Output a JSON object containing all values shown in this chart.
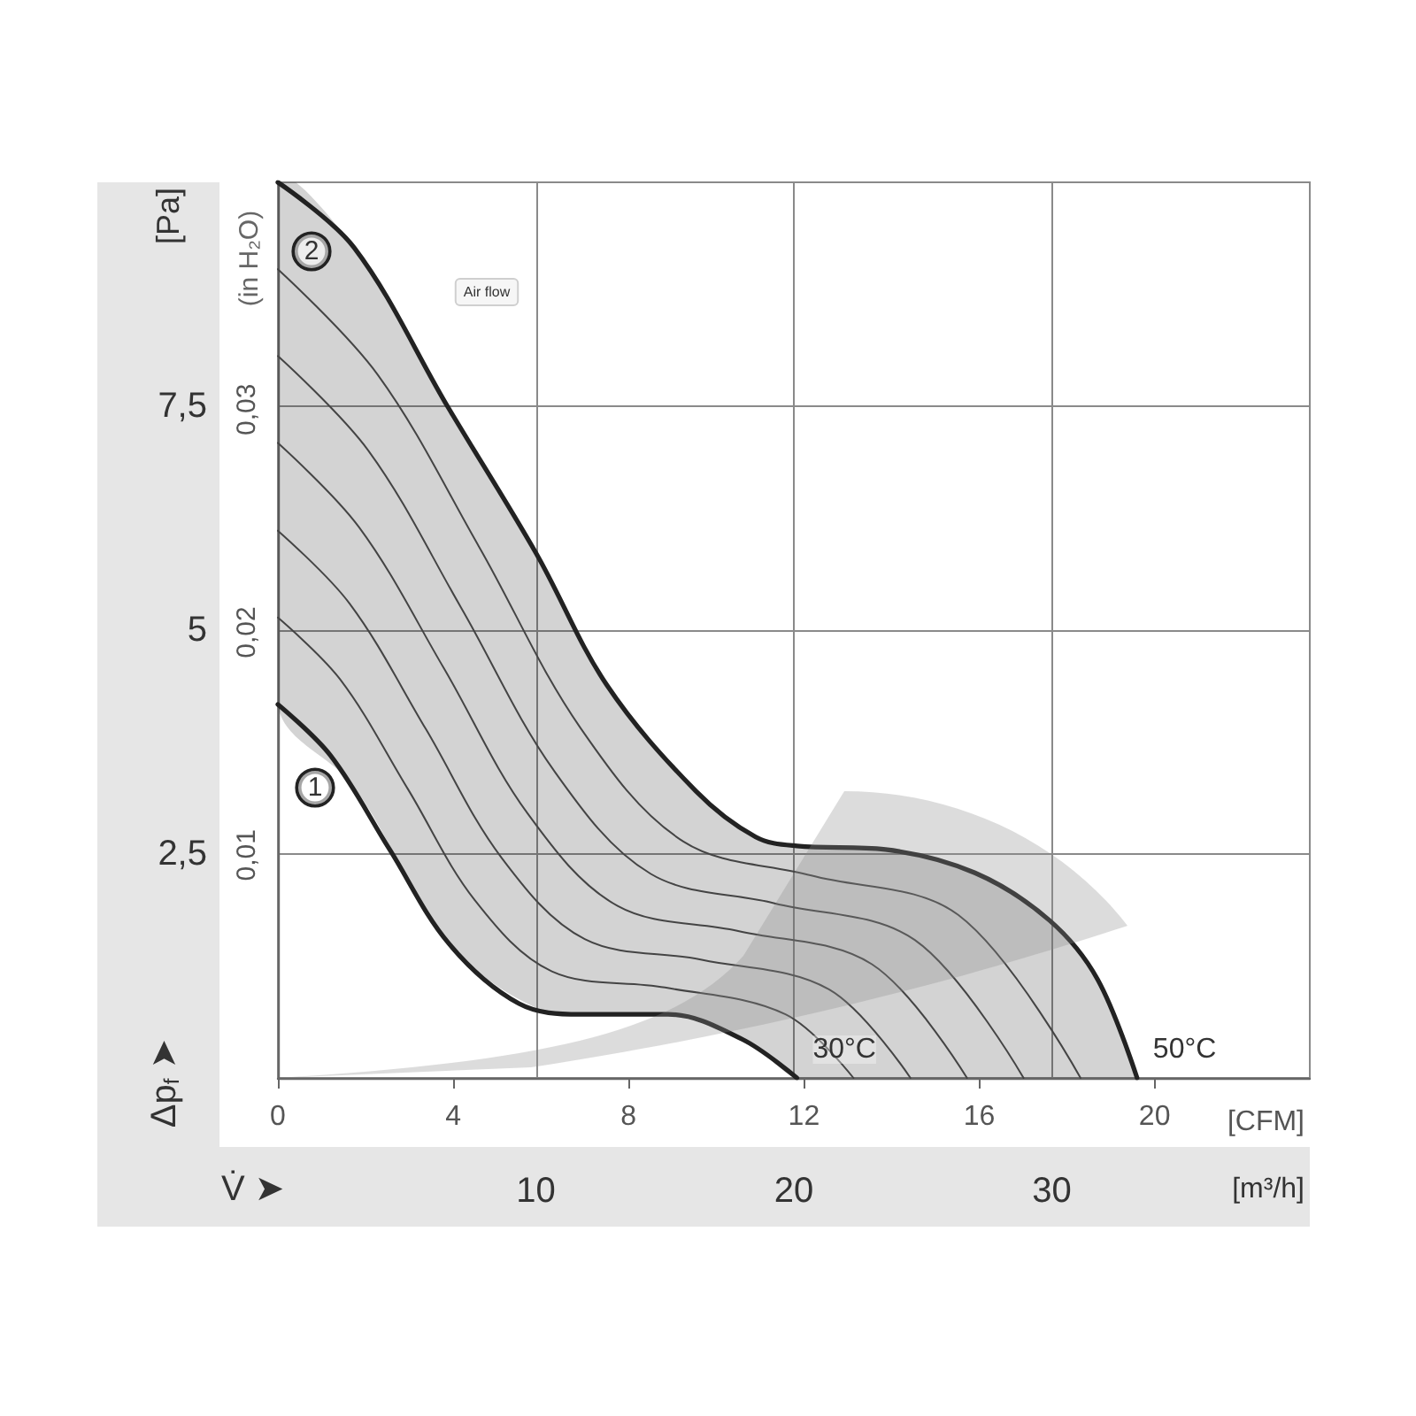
{
  "chart_data": {
    "type": "line",
    "xlabel": "[CFM]",
    "x2label": "[m³/h]",
    "ylabel": "[Pa]",
    "y2label": "(in H₂O)",
    "annotations": [
      "Air flow",
      "Δp$_{f}$ ➤",
      "V̇ ➤",
      {
        "text": "30°C",
        "x": 11.84,
        "y": 0
      },
      {
        "text": "50°C",
        "x": 19.6,
        "y": 0
      }
    ],
    "xlim": [
      0,
      23.54
    ],
    "xticks": [
      0,
      4,
      8,
      12,
      16,
      20
    ],
    "x2lim": [
      0,
      40
    ],
    "x2ticks": [
      10,
      20,
      30
    ],
    "ylim": [
      0,
      10
    ],
    "yticks": [
      {
        "value": 2.5,
        "label": "2,5"
      },
      5,
      {
        "value": 7.5,
        "label": "7,5"
      }
    ],
    "y2lim": [
      0,
      0.0402
    ],
    "y2ticks": [
      {
        "value": 0.01,
        "label": "0,01"
      },
      {
        "value": 0.02,
        "label": "0,02"
      },
      {
        "value": 0.03,
        "label": "0,03"
      }
    ],
    "grid": true,
    "marker": "none",
    "series": [
      {
        "color": "#444444",
        "x": [
          0,
          1.42,
          2.96,
          4.5,
          6.25,
          8.83,
          11.58,
          13.13
        ],
        "values": [
          5.14,
          4.45,
          3.23,
          1.98,
          1.19,
          1.01,
          0.71,
          0
        ]
      },
      {
        "color": "#444444",
        "x": [
          0,
          1.63,
          3.37,
          5.1,
          7.0,
          9.67,
          12.57,
          14.43
        ],
        "values": [
          6.11,
          5.3,
          3.9,
          2.46,
          1.55,
          1.32,
          0.99,
          0
        ]
      },
      {
        "color": "#444444",
        "x": [
          0,
          1.85,
          3.78,
          5.7,
          7.75,
          10.5,
          13.55,
          15.72
        ],
        "values": [
          7.09,
          6.15,
          4.58,
          2.95,
          1.92,
          1.64,
          1.27,
          0
        ]
      },
      {
        "color": "#444444",
        "x": [
          0,
          2.07,
          4.18,
          6.3,
          8.5,
          11.33,
          14.53,
          17.01
        ],
        "values": [
          8.06,
          7.0,
          5.25,
          3.43,
          2.28,
          1.95,
          1.54,
          0
        ]
      },
      {
        "color": "#444444",
        "x": [
          0,
          2.28,
          4.59,
          6.9,
          9.25,
          12.17,
          15.52,
          18.31
        ],
        "values": [
          9.03,
          7.85,
          5.93,
          3.91,
          2.64,
          2.26,
          1.82,
          0
        ]
      },
      {
        "name": "1",
        "color": "#222222",
        "x": [
          0,
          1.2,
          2.55,
          3.9,
          5.5,
          6.9,
          8.9,
          10.6,
          11.84
        ],
        "values": [
          4.17,
          3.6,
          2.55,
          1.5,
          0.83,
          0.71,
          0.71,
          0.43,
          0
        ]
      },
      {
        "name": "2",
        "color": "#222222",
        "x": [
          0,
          1.74,
          3.88,
          5.9,
          7.5,
          9.54,
          10.9,
          11.84,
          13.86,
          15.9,
          17.6,
          18.7,
          19.6
        ],
        "values": [
          10.0,
          9.27,
          7.49,
          5.85,
          4.39,
          3.2,
          2.69,
          2.59,
          2.55,
          2.29,
          1.76,
          1.1,
          0
        ],
        "lower": [
          4.17,
          3.25,
          1.52,
          0.78,
          0.71,
          0.67,
          0.36,
          0,
          0,
          0,
          0,
          0,
          0
        ],
        "upper": [
          10.0,
          9.27,
          7.49,
          5.85,
          4.39,
          3.2,
          2.69,
          2.59,
          2.55,
          2.29,
          1.76,
          1.1,
          0
        ]
      }
    ]
  }
}
